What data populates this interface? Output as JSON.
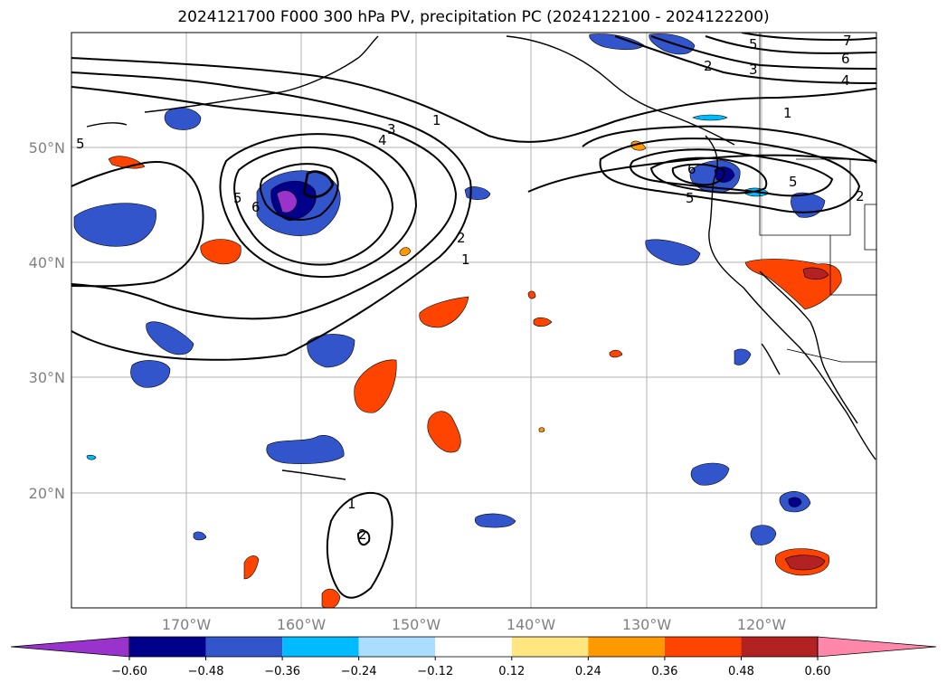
{
  "title": "2024121700 F000 300 hPa PV, precipitation PC (2024122100 - 2024122200)",
  "lat_labels": [
    "50°N",
    "40°N",
    "30°N",
    "20°N"
  ],
  "lon_labels": [
    "170°W",
    "160°W",
    "150°W",
    "140°W",
    "130°W",
    "120°W"
  ],
  "pv_contour_labels": [
    "1",
    "2",
    "3",
    "4",
    "5",
    "6",
    "7"
  ],
  "colorbar": {
    "ticks": [
      "−0.60",
      "−0.48",
      "−0.36",
      "−0.24",
      "−0.12",
      "0.12",
      "0.24",
      "0.36",
      "0.48",
      "0.60"
    ],
    "colors": [
      "#9933cc",
      "#00008b",
      "#3355cc",
      "#00bbff",
      "#aaddff",
      "#ffffff",
      "#ffe680",
      "#ff9900",
      "#ff4400",
      "#b22222",
      "#ff88aa"
    ]
  }
}
